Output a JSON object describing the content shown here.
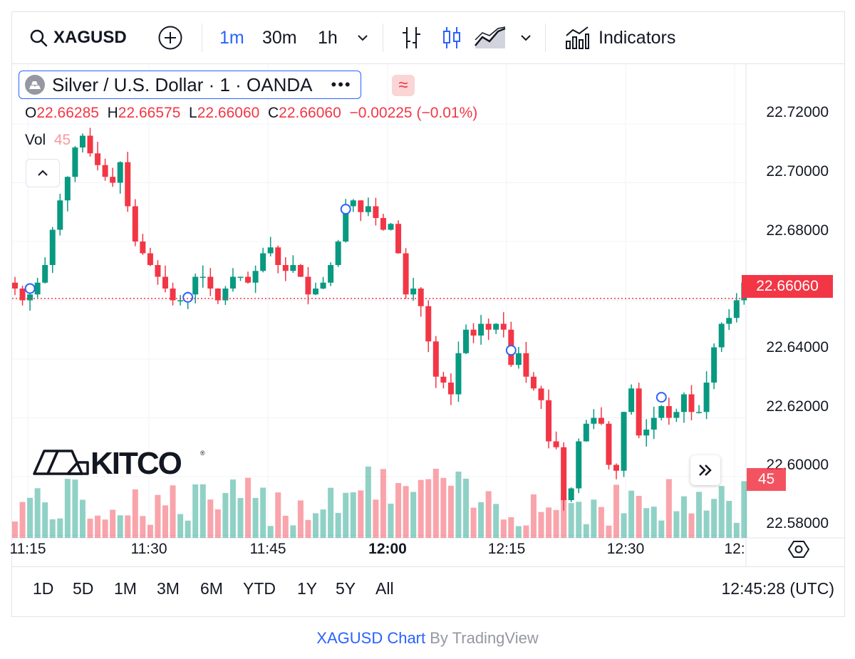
{
  "toolbar": {
    "symbol": "XAGUSD",
    "intervals": [
      "1m",
      "30m",
      "1h"
    ],
    "active_interval": "1m",
    "indicators_label": "Indicators"
  },
  "legend": {
    "title": "Silver / U.S. Dollar · 1 · OANDA",
    "open_label": "O",
    "open": "22.66285",
    "high_label": "H",
    "high": "22.66575",
    "low_label": "L",
    "low": "22.66060",
    "close_label": "C",
    "close": "22.66060",
    "change": "−0.00225 (−0.01%)",
    "vol_label": "Vol",
    "vol": "45"
  },
  "price_axis": {
    "labels": [
      "22.72000",
      "22.70000",
      "22.68000",
      "22.66060",
      "22.64000",
      "22.62000",
      "22.60000",
      "22.58000"
    ],
    "last_price": "22.66060",
    "last_volume": "45"
  },
  "time_axis": {
    "labels": [
      "11:15",
      "11:30",
      "11:45",
      "12:00",
      "12:15",
      "12:30",
      "12:"
    ]
  },
  "ranges": [
    "1D",
    "5D",
    "1M",
    "3M",
    "6M",
    "YTD",
    "1Y",
    "5Y",
    "All"
  ],
  "clock": "12:45:28 (UTC)",
  "credit": {
    "link": "XAGUSD Chart",
    "by": "By TradingView"
  },
  "watermark": "KITCO",
  "colors": {
    "up": "#089981",
    "down": "#f23645",
    "accent": "#2962ff"
  },
  "chart_data": {
    "type": "candlestick",
    "price_range": [
      22.58,
      22.725
    ],
    "last_price": 22.6606,
    "ticks": [
      22.72,
      22.7,
      22.68,
      22.66,
      22.64,
      22.62,
      22.6,
      22.58
    ],
    "close_series": [
      22.664,
      22.66,
      22.662,
      22.666,
      22.672,
      22.684,
      22.694,
      22.702,
      22.712,
      22.716,
      22.71,
      22.706,
      22.702,
      22.7,
      22.707,
      22.692,
      22.68,
      22.676,
      22.672,
      22.668,
      22.664,
      22.66,
      22.66,
      22.662,
      22.668,
      22.668,
      22.664,
      22.66,
      22.664,
      22.668,
      22.668,
      22.666,
      22.67,
      22.676,
      22.678,
      22.672,
      22.67,
      22.672,
      22.668,
      22.662,
      22.664,
      22.666,
      22.672,
      22.68,
      22.692,
      22.694,
      22.69,
      22.692,
      22.688,
      22.684,
      22.686,
      22.676,
      22.662,
      22.664,
      22.658,
      22.646,
      22.634,
      22.632,
      22.628,
      22.642,
      22.65,
      22.648,
      22.652,
      22.65,
      22.652,
      22.65,
      22.638,
      22.642,
      22.634,
      22.63,
      22.626,
      22.612,
      22.61,
      22.592,
      22.596,
      22.612,
      22.618,
      22.62,
      22.618,
      22.604,
      22.602,
      22.622,
      22.63,
      22.614,
      22.616,
      22.62,
      22.624,
      22.62,
      22.622,
      22.628,
      22.622,
      22.622,
      22.632,
      22.644,
      22.652,
      22.654,
      22.66,
      22.666
    ]
  }
}
